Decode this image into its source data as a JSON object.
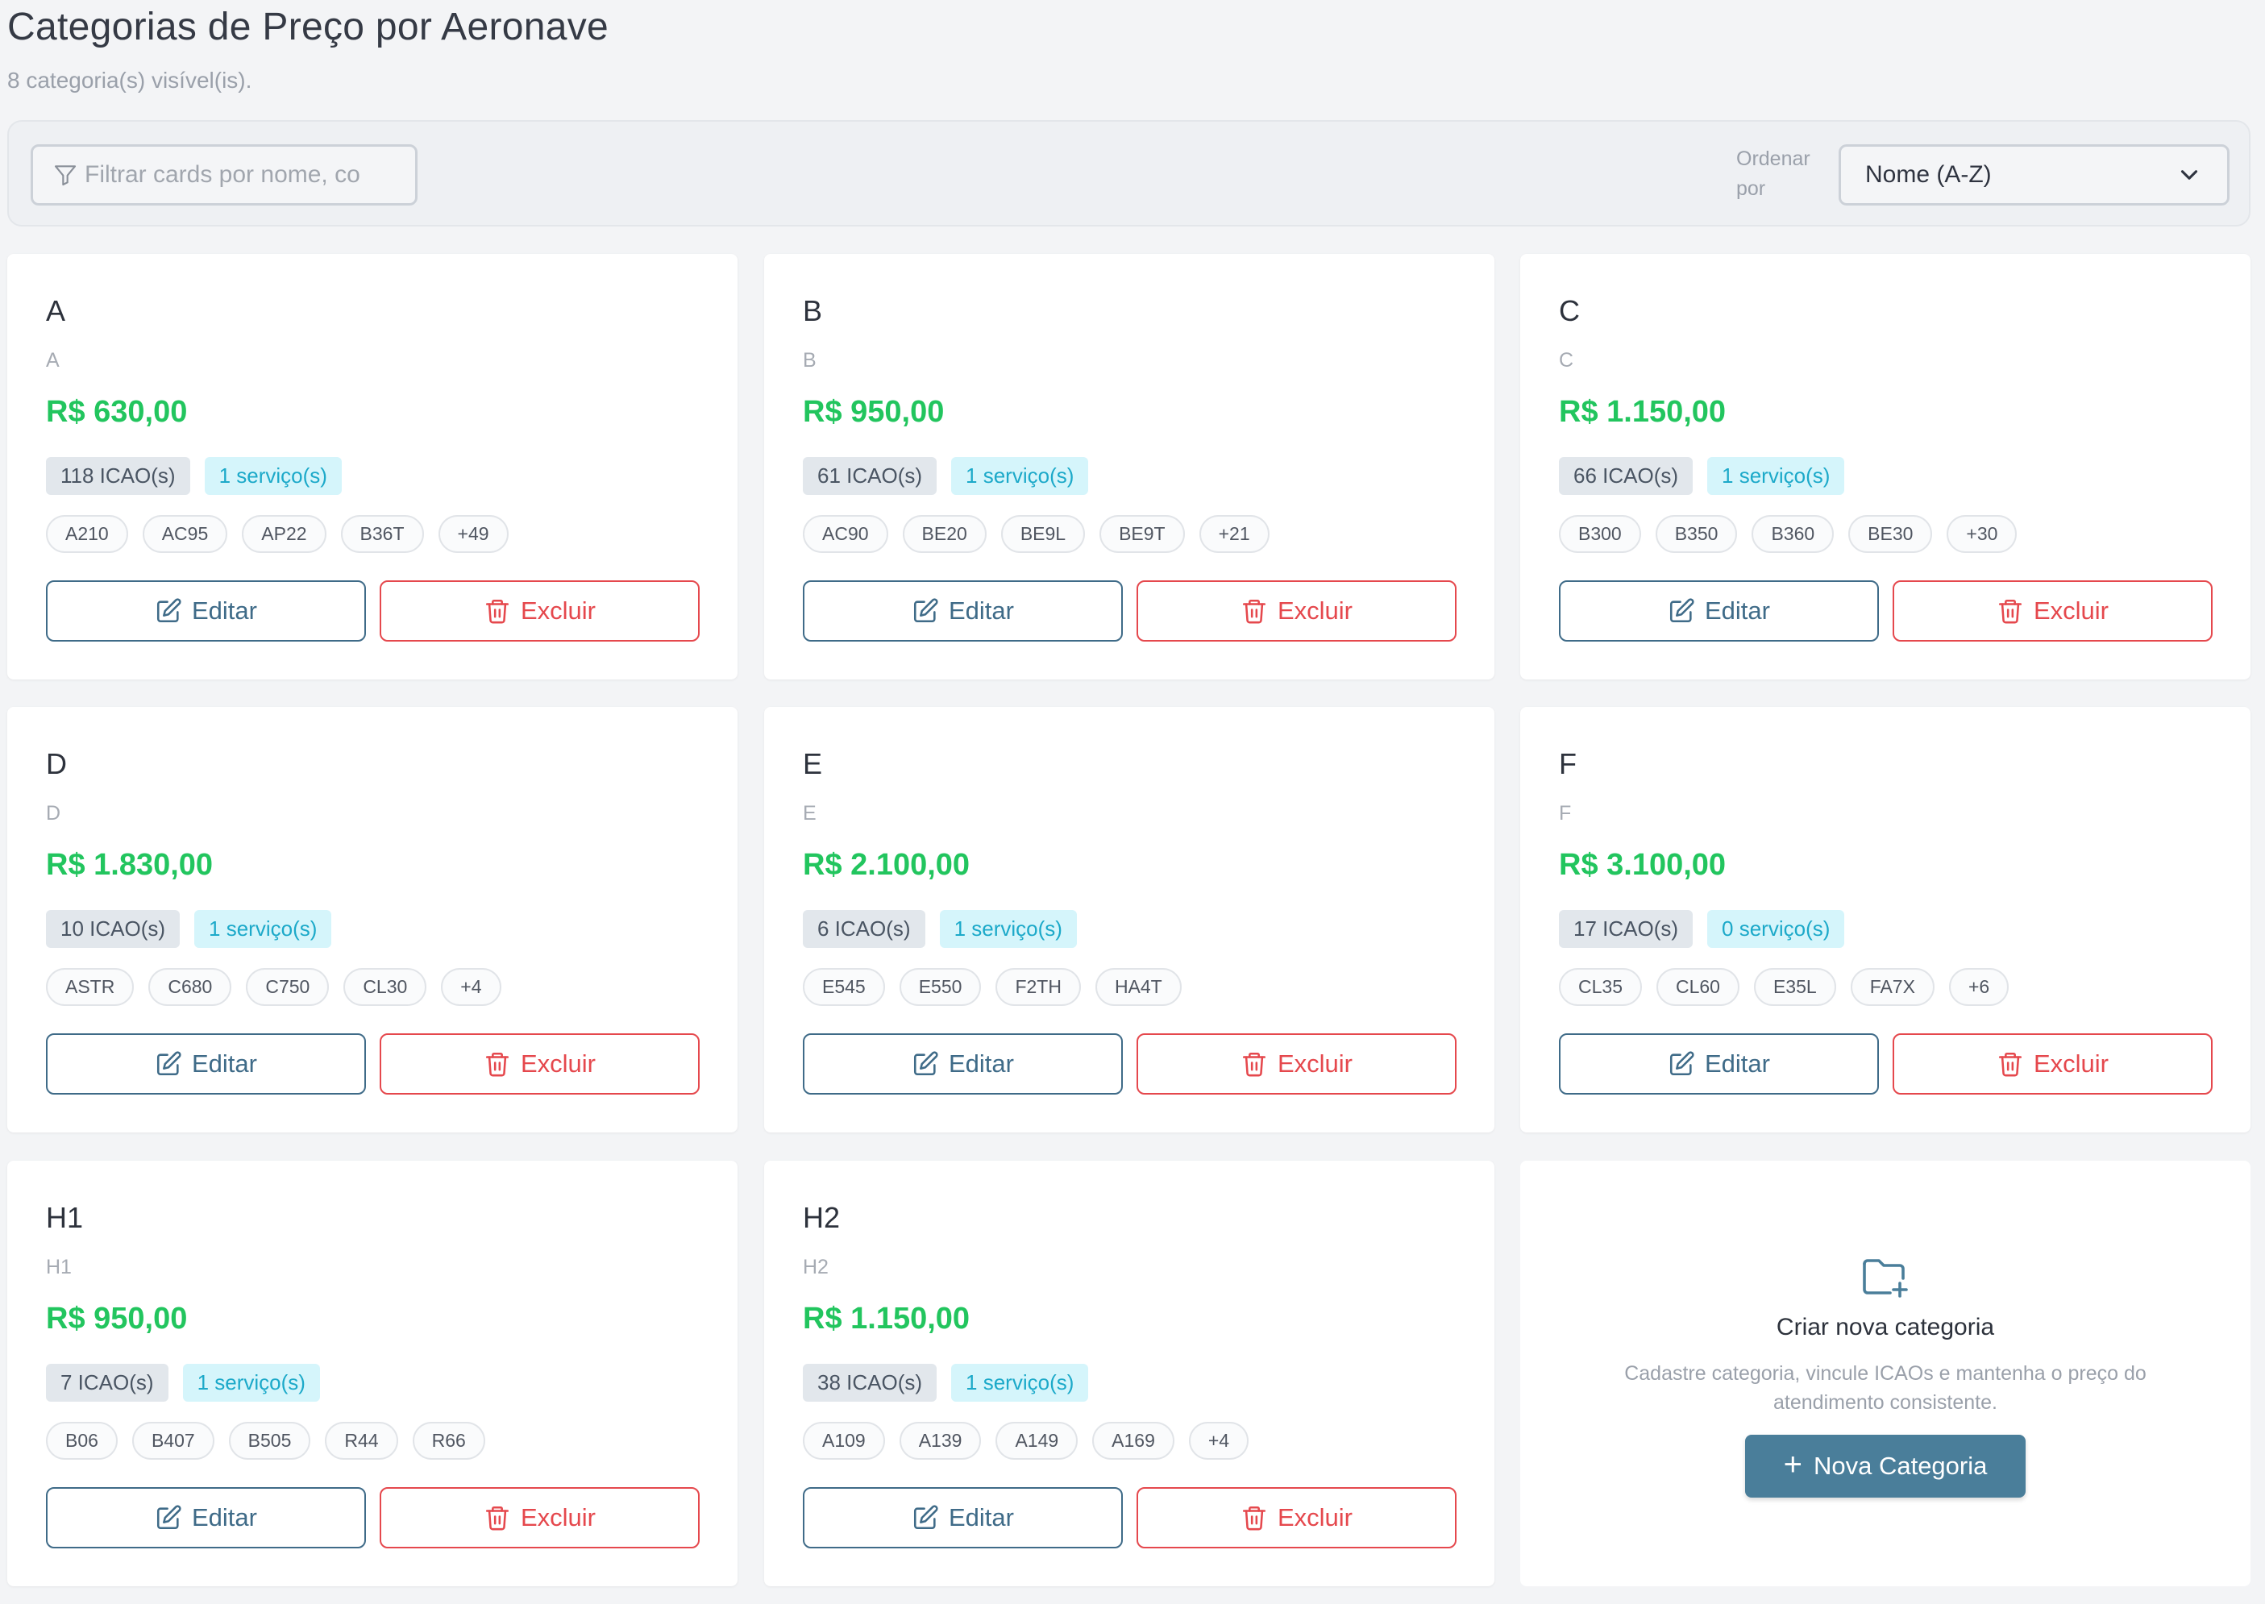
{
  "header": {
    "title": "Categorias de Preço por Aeronave",
    "subtitle": "8 categoria(s) visível(is)."
  },
  "toolbar": {
    "filter_placeholder": "Filtrar cards por nome, co",
    "sort_label": "Ordenar por",
    "sort_value": "Nome (A-Z)"
  },
  "buttons": {
    "edit": "Editar",
    "delete": "Excluir"
  },
  "cards": [
    {
      "title": "A",
      "code": "A",
      "price": "R$ 630,00",
      "icao": "118 ICAO(s)",
      "services": "1 serviço(s)",
      "chips": [
        "A210",
        "AC95",
        "AP22",
        "B36T",
        "+49"
      ]
    },
    {
      "title": "B",
      "code": "B",
      "price": "R$ 950,00",
      "icao": "61 ICAO(s)",
      "services": "1 serviço(s)",
      "chips": [
        "AC90",
        "BE20",
        "BE9L",
        "BE9T",
        "+21"
      ]
    },
    {
      "title": "C",
      "code": "C",
      "price": "R$ 1.150,00",
      "icao": "66 ICAO(s)",
      "services": "1 serviço(s)",
      "chips": [
        "B300",
        "B350",
        "B360",
        "BE30",
        "+30"
      ]
    },
    {
      "title": "D",
      "code": "D",
      "price": "R$ 1.830,00",
      "icao": "10 ICAO(s)",
      "services": "1 serviço(s)",
      "chips": [
        "ASTR",
        "C680",
        "C750",
        "CL30",
        "+4"
      ]
    },
    {
      "title": "E",
      "code": "E",
      "price": "R$ 2.100,00",
      "icao": "6 ICAO(s)",
      "services": "1 serviço(s)",
      "chips": [
        "E545",
        "E550",
        "F2TH",
        "HA4T"
      ]
    },
    {
      "title": "F",
      "code": "F",
      "price": "R$ 3.100,00",
      "icao": "17 ICAO(s)",
      "services": "0 serviço(s)",
      "chips": [
        "CL35",
        "CL60",
        "E35L",
        "FA7X",
        "+6"
      ]
    },
    {
      "title": "H1",
      "code": "H1",
      "price": "R$ 950,00",
      "icao": "7 ICAO(s)",
      "services": "1 serviço(s)",
      "chips": [
        "B06",
        "B407",
        "B505",
        "R44",
        "R66"
      ]
    },
    {
      "title": "H2",
      "code": "H2",
      "price": "R$ 1.150,00",
      "icao": "38 ICAO(s)",
      "services": "1 serviço(s)",
      "chips": [
        "A109",
        "A139",
        "A149",
        "A169",
        "+4"
      ]
    }
  ],
  "new_category": {
    "title": "Criar nova categoria",
    "description": "Cadastre categoria, vincule ICAOs e mantenha o preço do atendimento consistente.",
    "button_label": "Nova Categoria",
    "icon": "folder-plus-icon"
  },
  "colors": {
    "price": "#22c55e",
    "edit": "#3f6b88",
    "delete": "#e5484d",
    "services_badge": "#1ca9c9",
    "primary_button": "#4a7e9a"
  }
}
